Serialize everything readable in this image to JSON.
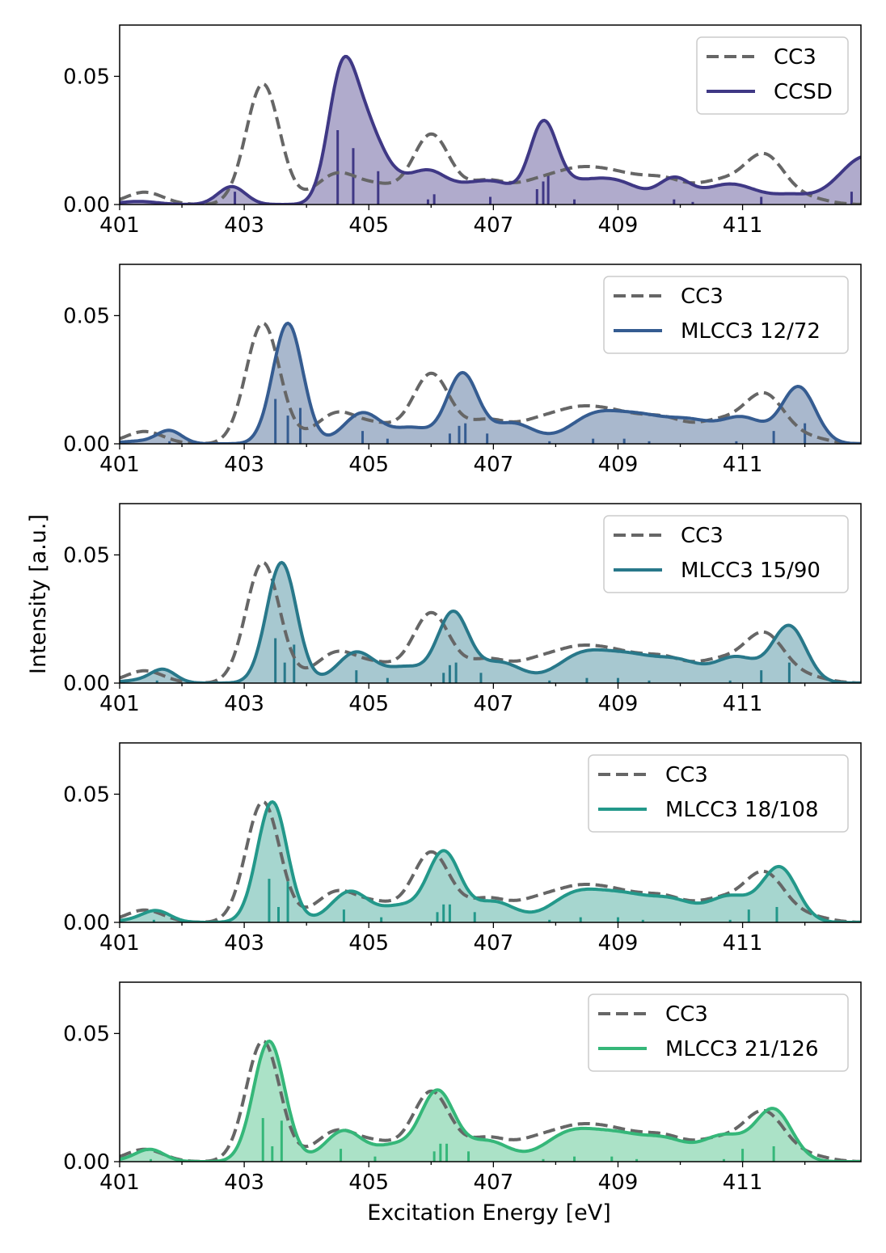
{
  "chart_data": {
    "type": "line",
    "ylabel": "Intensity [a.u.]",
    "xlabel": "Excitation Energy [eV]",
    "xlim": [
      401,
      412.9
    ],
    "ylim": [
      0,
      0.07
    ],
    "xticks": [
      401,
      403,
      405,
      407,
      409,
      411
    ],
    "xtick_labels": [
      "401",
      "403",
      "405",
      "407",
      "409",
      "411"
    ],
    "yticks": [
      0.0,
      0.05
    ],
    "ytick_labels": [
      "0.00",
      "0.05"
    ],
    "reference": {
      "name": "CC3",
      "color": "#666666",
      "style": "dashed",
      "peaks": [
        [
          401.4,
          0.0048,
          0.3
        ],
        [
          403.3,
          0.047,
          0.27
        ],
        [
          404.5,
          0.012,
          0.35
        ],
        [
          405.2,
          0.006,
          0.3
        ],
        [
          406.0,
          0.027,
          0.3
        ],
        [
          406.9,
          0.009,
          0.35
        ],
        [
          407.6,
          0.004,
          0.3
        ],
        [
          408.2,
          0.0105,
          0.45
        ],
        [
          409.0,
          0.0105,
          0.5
        ],
        [
          409.8,
          0.007,
          0.35
        ],
        [
          410.6,
          0.008,
          0.35
        ],
        [
          411.35,
          0.019,
          0.33
        ],
        [
          412.1,
          0.002,
          0.3
        ]
      ]
    },
    "panels": [
      {
        "legend": [
          "CC3",
          "CCSD"
        ],
        "series_name": "CCSD",
        "color": "#3f3885",
        "fill": "#b0abcc",
        "peaks": [
          [
            401.3,
            0.0012,
            0.3
          ],
          [
            402.8,
            0.007,
            0.22
          ],
          [
            404.55,
            0.04,
            0.22
          ],
          [
            404.9,
            0.03,
            0.3
          ],
          [
            405.5,
            0.007,
            0.35
          ],
          [
            406.0,
            0.01,
            0.28
          ],
          [
            406.6,
            0.006,
            0.3
          ],
          [
            407.1,
            0.007,
            0.3
          ],
          [
            407.8,
            0.029,
            0.22
          ],
          [
            408.3,
            0.007,
            0.4
          ],
          [
            409.0,
            0.008,
            0.4
          ],
          [
            409.9,
            0.009,
            0.25
          ],
          [
            410.8,
            0.008,
            0.45
          ],
          [
            411.8,
            0.003,
            0.3
          ],
          [
            413.0,
            0.019,
            0.45
          ]
        ],
        "sticks": [
          [
            402.85,
            0.005
          ],
          [
            404.5,
            0.029
          ],
          [
            404.75,
            0.022
          ],
          [
            405.15,
            0.013
          ],
          [
            405.95,
            0.002
          ],
          [
            406.05,
            0.004
          ],
          [
            406.95,
            0.003
          ],
          [
            407.7,
            0.006
          ],
          [
            407.8,
            0.009
          ],
          [
            407.88,
            0.012
          ],
          [
            408.3,
            0.002
          ],
          [
            409.9,
            0.002
          ],
          [
            410.2,
            0.001
          ],
          [
            411.3,
            0.003
          ],
          [
            412.5,
            0.001
          ],
          [
            412.75,
            0.005
          ]
        ]
      },
      {
        "legend": [
          "CC3",
          "MLCC3 12/72"
        ],
        "series_name": "MLCC3 12/72",
        "color": "#355c91",
        "fill": "#a9b8cd",
        "peaks": [
          [
            401.3,
            0.001,
            0.3
          ],
          [
            401.8,
            0.005,
            0.2
          ],
          [
            403.7,
            0.047,
            0.24
          ],
          [
            404.9,
            0.012,
            0.3
          ],
          [
            405.7,
            0.006,
            0.3
          ],
          [
            406.5,
            0.027,
            0.25
          ],
          [
            407.3,
            0.008,
            0.35
          ],
          [
            408.6,
            0.01,
            0.4
          ],
          [
            409.4,
            0.01,
            0.45
          ],
          [
            410.2,
            0.007,
            0.35
          ],
          [
            411.0,
            0.01,
            0.35
          ],
          [
            411.9,
            0.022,
            0.27
          ]
        ],
        "sticks": [
          [
            401.8,
            0.001
          ],
          [
            403.5,
            0.0175
          ],
          [
            403.7,
            0.011
          ],
          [
            403.9,
            0.014
          ],
          [
            404.9,
            0.005
          ],
          [
            405.3,
            0.002
          ],
          [
            406.3,
            0.004
          ],
          [
            406.45,
            0.007
          ],
          [
            406.55,
            0.008
          ],
          [
            406.9,
            0.004
          ],
          [
            407.9,
            0.001
          ],
          [
            408.6,
            0.002
          ],
          [
            409.1,
            0.002
          ],
          [
            409.5,
            0.001
          ],
          [
            410.9,
            0.001
          ],
          [
            411.5,
            0.005
          ],
          [
            412.0,
            0.008
          ]
        ]
      },
      {
        "legend": [
          "CC3",
          "MLCC3 15/90"
        ],
        "series_name": "MLCC3 15/90",
        "color": "#28788a",
        "fill": "#a7c8d0",
        "peaks": [
          [
            401.3,
            0.001,
            0.3
          ],
          [
            401.7,
            0.005,
            0.2
          ],
          [
            403.6,
            0.047,
            0.24
          ],
          [
            404.8,
            0.012,
            0.3
          ],
          [
            405.6,
            0.006,
            0.3
          ],
          [
            406.35,
            0.027,
            0.25
          ],
          [
            407.1,
            0.008,
            0.35
          ],
          [
            408.4,
            0.01,
            0.4
          ],
          [
            409.2,
            0.01,
            0.45
          ],
          [
            410.0,
            0.007,
            0.35
          ],
          [
            410.9,
            0.01,
            0.35
          ],
          [
            411.75,
            0.022,
            0.27
          ]
        ],
        "sticks": [
          [
            401.6,
            0.001
          ],
          [
            403.5,
            0.0175
          ],
          [
            403.65,
            0.008
          ],
          [
            403.8,
            0.015
          ],
          [
            404.8,
            0.005
          ],
          [
            405.3,
            0.002
          ],
          [
            406.2,
            0.004
          ],
          [
            406.3,
            0.007
          ],
          [
            406.4,
            0.008
          ],
          [
            406.8,
            0.004
          ],
          [
            407.9,
            0.001
          ],
          [
            408.5,
            0.002
          ],
          [
            409.0,
            0.002
          ],
          [
            409.5,
            0.001
          ],
          [
            410.8,
            0.001
          ],
          [
            411.3,
            0.005
          ],
          [
            411.75,
            0.008
          ]
        ]
      },
      {
        "legend": [
          "CC3",
          "MLCC3 18/108"
        ],
        "series_name": "MLCC3 18/108",
        "color": "#23988a",
        "fill": "#a6d6cf",
        "peaks": [
          [
            401.3,
            0.001,
            0.3
          ],
          [
            401.6,
            0.004,
            0.22
          ],
          [
            403.45,
            0.047,
            0.24
          ],
          [
            404.7,
            0.012,
            0.3
          ],
          [
            405.5,
            0.006,
            0.3
          ],
          [
            406.2,
            0.027,
            0.26
          ],
          [
            407.0,
            0.008,
            0.35
          ],
          [
            408.3,
            0.01,
            0.4
          ],
          [
            409.1,
            0.01,
            0.45
          ],
          [
            409.9,
            0.007,
            0.35
          ],
          [
            410.8,
            0.01,
            0.35
          ],
          [
            411.6,
            0.021,
            0.28
          ]
        ],
        "sticks": [
          [
            401.55,
            0.001
          ],
          [
            403.4,
            0.017
          ],
          [
            403.55,
            0.006
          ],
          [
            403.7,
            0.016
          ],
          [
            404.6,
            0.005
          ],
          [
            405.2,
            0.002
          ],
          [
            406.1,
            0.004
          ],
          [
            406.2,
            0.007
          ],
          [
            406.3,
            0.007
          ],
          [
            406.7,
            0.004
          ],
          [
            407.9,
            0.001
          ],
          [
            408.4,
            0.002
          ],
          [
            409.0,
            0.002
          ],
          [
            409.4,
            0.001
          ],
          [
            410.8,
            0.001
          ],
          [
            411.1,
            0.005
          ],
          [
            411.55,
            0.006
          ]
        ]
      },
      {
        "legend": [
          "CC3",
          "MLCC3 21/126"
        ],
        "series_name": "MLCC3 21/126",
        "color": "#35b779",
        "fill": "#abe2c7",
        "peaks": [
          [
            401.3,
            0.001,
            0.3
          ],
          [
            401.5,
            0.004,
            0.22
          ],
          [
            403.4,
            0.047,
            0.25
          ],
          [
            404.6,
            0.012,
            0.3
          ],
          [
            405.4,
            0.006,
            0.3
          ],
          [
            406.1,
            0.027,
            0.27
          ],
          [
            406.9,
            0.008,
            0.35
          ],
          [
            408.2,
            0.01,
            0.4
          ],
          [
            409.0,
            0.01,
            0.45
          ],
          [
            409.8,
            0.007,
            0.35
          ],
          [
            410.7,
            0.01,
            0.35
          ],
          [
            411.5,
            0.02,
            0.29
          ]
        ],
        "sticks": [
          [
            401.5,
            0.001
          ],
          [
            403.3,
            0.017
          ],
          [
            403.45,
            0.006
          ],
          [
            403.6,
            0.016
          ],
          [
            404.55,
            0.005
          ],
          [
            405.1,
            0.002
          ],
          [
            406.05,
            0.004
          ],
          [
            406.15,
            0.007
          ],
          [
            406.25,
            0.007
          ],
          [
            406.6,
            0.004
          ],
          [
            407.8,
            0.001
          ],
          [
            408.3,
            0.002
          ],
          [
            408.9,
            0.002
          ],
          [
            409.3,
            0.001
          ],
          [
            410.7,
            0.001
          ],
          [
            411.0,
            0.005
          ],
          [
            411.5,
            0.006
          ]
        ]
      }
    ]
  }
}
